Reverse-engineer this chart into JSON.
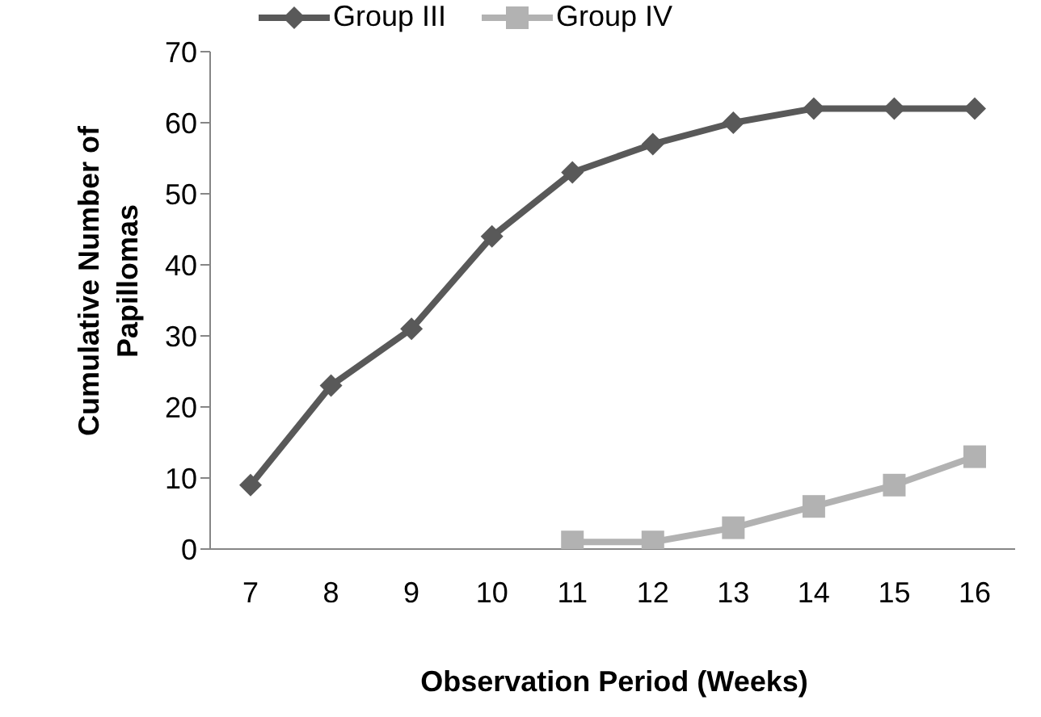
{
  "chart_data": {
    "type": "line",
    "xlabel": "Observation Period (Weeks)",
    "ylabel": "Cumulative Number of Papillomas",
    "categories": [
      "7",
      "8",
      "9",
      "10",
      "11",
      "12",
      "13",
      "14",
      "15",
      "16"
    ],
    "series": [
      {
        "name": "Group III",
        "color": "#595959",
        "marker": "diamond",
        "values": [
          9,
          23,
          31,
          44,
          53,
          57,
          60,
          62,
          62,
          62
        ]
      },
      {
        "name": "Group IV",
        "color": "#b2b2b2",
        "marker": "square",
        "values": [
          null,
          null,
          null,
          null,
          1,
          1,
          3,
          6,
          9,
          13
        ]
      }
    ],
    "ylim": [
      0,
      70
    ],
    "yticks": [
      0,
      10,
      20,
      30,
      40,
      50,
      60,
      70
    ],
    "grid": false,
    "legend": "top",
    "line_style": "solid"
  }
}
